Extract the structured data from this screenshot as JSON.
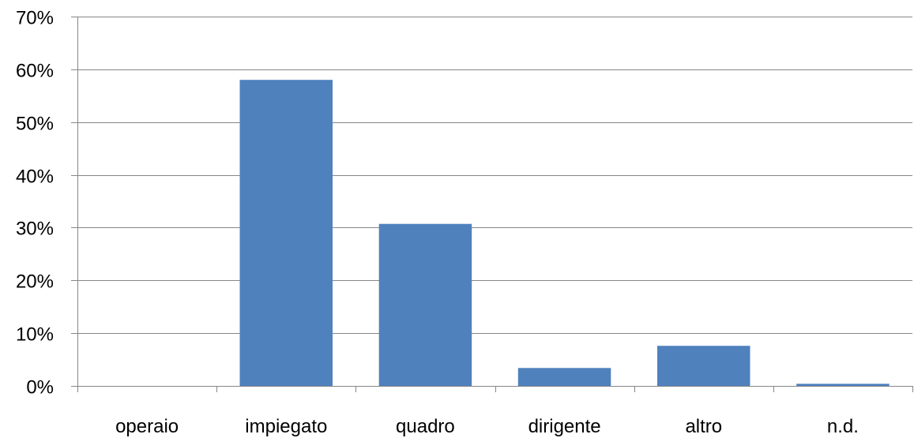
{
  "chart_data": {
    "type": "bar",
    "categories": [
      "operaio",
      "impiegato",
      "quadro",
      "dirigente",
      "altro",
      "n.d."
    ],
    "values": [
      0,
      58,
      30.7,
      3.4,
      7.6,
      0.4
    ],
    "title": "",
    "xlabel": "",
    "ylabel": "",
    "ylim": [
      0,
      70
    ],
    "y_ticks": [
      0,
      10,
      20,
      30,
      40,
      50,
      60,
      70
    ],
    "y_tick_labels": [
      "0%",
      "10%",
      "20%",
      "30%",
      "40%",
      "50%",
      "60%",
      "70%"
    ],
    "grid": true,
    "legend": "none",
    "bar_color": "#4F81BD",
    "grid_color": "#868686"
  }
}
